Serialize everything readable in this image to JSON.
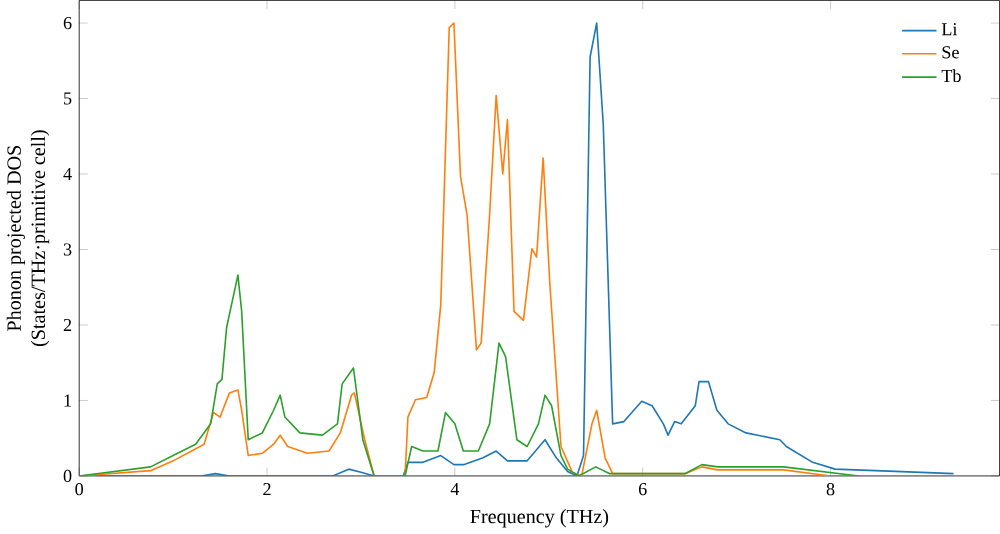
{
  "chart_data": {
    "type": "line",
    "xlabel": "Frequency (THz)",
    "ylabel": "Phonon projected DOS\n(States/THz·primitive cell)",
    "xlim": [
      0,
      9.8
    ],
    "ylim": [
      0,
      6.3
    ],
    "xticks": [
      0,
      2,
      4,
      6,
      8
    ],
    "yticks": [
      0,
      1,
      2,
      3,
      4,
      5,
      6
    ],
    "legend": "top right",
    "grid": false,
    "series": [
      {
        "name": "Li",
        "color": "#1f77b4",
        "x": [
          0,
          1.3,
          1.45,
          1.6,
          2.7,
          2.87,
          3.0,
          3.14,
          3.45,
          3.5,
          3.66,
          3.85,
          3.99,
          4.1,
          4.3,
          4.44,
          4.56,
          4.77,
          4.96,
          5.08,
          5.2,
          5.3,
          5.37,
          5.44,
          5.51,
          5.58,
          5.68,
          5.8,
          5.99,
          6.1,
          6.22,
          6.27,
          6.34,
          6.41,
          6.56,
          6.6,
          6.7,
          6.79,
          6.91,
          7.1,
          7.46,
          7.53,
          7.81,
          8.05,
          8.69,
          9.31
        ],
        "values": [
          0,
          0,
          0.03,
          0,
          0,
          0.09,
          0.05,
          0,
          0,
          0.18,
          0.18,
          0.27,
          0.15,
          0.15,
          0.24,
          0.33,
          0.2,
          0.2,
          0.48,
          0.24,
          0.06,
          0,
          0.27,
          5.55,
          6.0,
          4.66,
          0.69,
          0.72,
          0.99,
          0.93,
          0.69,
          0.54,
          0.72,
          0.69,
          0.93,
          1.25,
          1.25,
          0.87,
          0.69,
          0.57,
          0.48,
          0.39,
          0.18,
          0.09,
          0.06,
          0.03
        ]
      },
      {
        "name": "Se",
        "color": "#ff7f0e",
        "x": [
          0,
          0.76,
          1.0,
          1.33,
          1.43,
          1.5,
          1.6,
          1.69,
          1.73,
          1.8,
          1.95,
          2.07,
          2.14,
          2.22,
          2.43,
          2.66,
          2.78,
          2.9,
          2.93,
          3.04,
          3.14,
          3.47,
          3.5,
          3.58,
          3.7,
          3.78,
          3.85,
          3.94,
          3.99,
          4.06,
          4.13,
          4.23,
          4.28,
          4.37,
          4.44,
          4.51,
          4.56,
          4.63,
          4.73,
          4.82,
          4.87,
          4.94,
          5.01,
          5.13,
          5.25,
          5.35,
          5.46,
          5.51,
          5.6,
          5.68,
          6.45,
          6.63,
          6.8,
          7.5,
          8.0
        ],
        "values": [
          0,
          0.07,
          0.2,
          0.42,
          0.84,
          0.78,
          1.1,
          1.14,
          0.87,
          0.27,
          0.3,
          0.42,
          0.54,
          0.39,
          0.3,
          0.33,
          0.57,
          1.07,
          1.1,
          0.48,
          0,
          0,
          0.78,
          1.01,
          1.04,
          1.37,
          2.27,
          5.94,
          6.0,
          3.97,
          3.46,
          1.67,
          1.76,
          3.46,
          5.04,
          4.0,
          4.72,
          2.18,
          2.06,
          3.01,
          2.9,
          4.21,
          2.57,
          0.39,
          0.05,
          0,
          0.69,
          0.87,
          0.24,
          0.03,
          0.03,
          0.12,
          0.08,
          0.08,
          0
        ]
      },
      {
        "name": "Tb",
        "color": "#2ca02c",
        "x": [
          0,
          0.76,
          1.0,
          1.24,
          1.4,
          1.47,
          1.52,
          1.57,
          1.69,
          1.73,
          1.8,
          1.95,
          2.07,
          2.14,
          2.19,
          2.35,
          2.59,
          2.75,
          2.8,
          2.92,
          3.02,
          3.14,
          3.47,
          3.54,
          3.66,
          3.82,
          3.9,
          4.0,
          4.09,
          4.25,
          4.37,
          4.47,
          4.54,
          4.66,
          4.77,
          4.89,
          4.96,
          5.03,
          5.13,
          5.2,
          5.32,
          5.5,
          5.65,
          6.45,
          6.63,
          6.8,
          7.5,
          8.3
        ],
        "values": [
          0,
          0.12,
          0.27,
          0.42,
          0.69,
          1.22,
          1.28,
          1.97,
          2.66,
          2.18,
          0.48,
          0.57,
          0.87,
          1.07,
          0.78,
          0.57,
          0.54,
          0.69,
          1.22,
          1.43,
          0.48,
          0,
          0,
          0.39,
          0.33,
          0.33,
          0.84,
          0.69,
          0.33,
          0.33,
          0.69,
          1.76,
          1.58,
          0.48,
          0.39,
          0.69,
          1.07,
          0.93,
          0.27,
          0.09,
          0,
          0.12,
          0.03,
          0.03,
          0.15,
          0.12,
          0.12,
          0
        ]
      }
    ]
  }
}
